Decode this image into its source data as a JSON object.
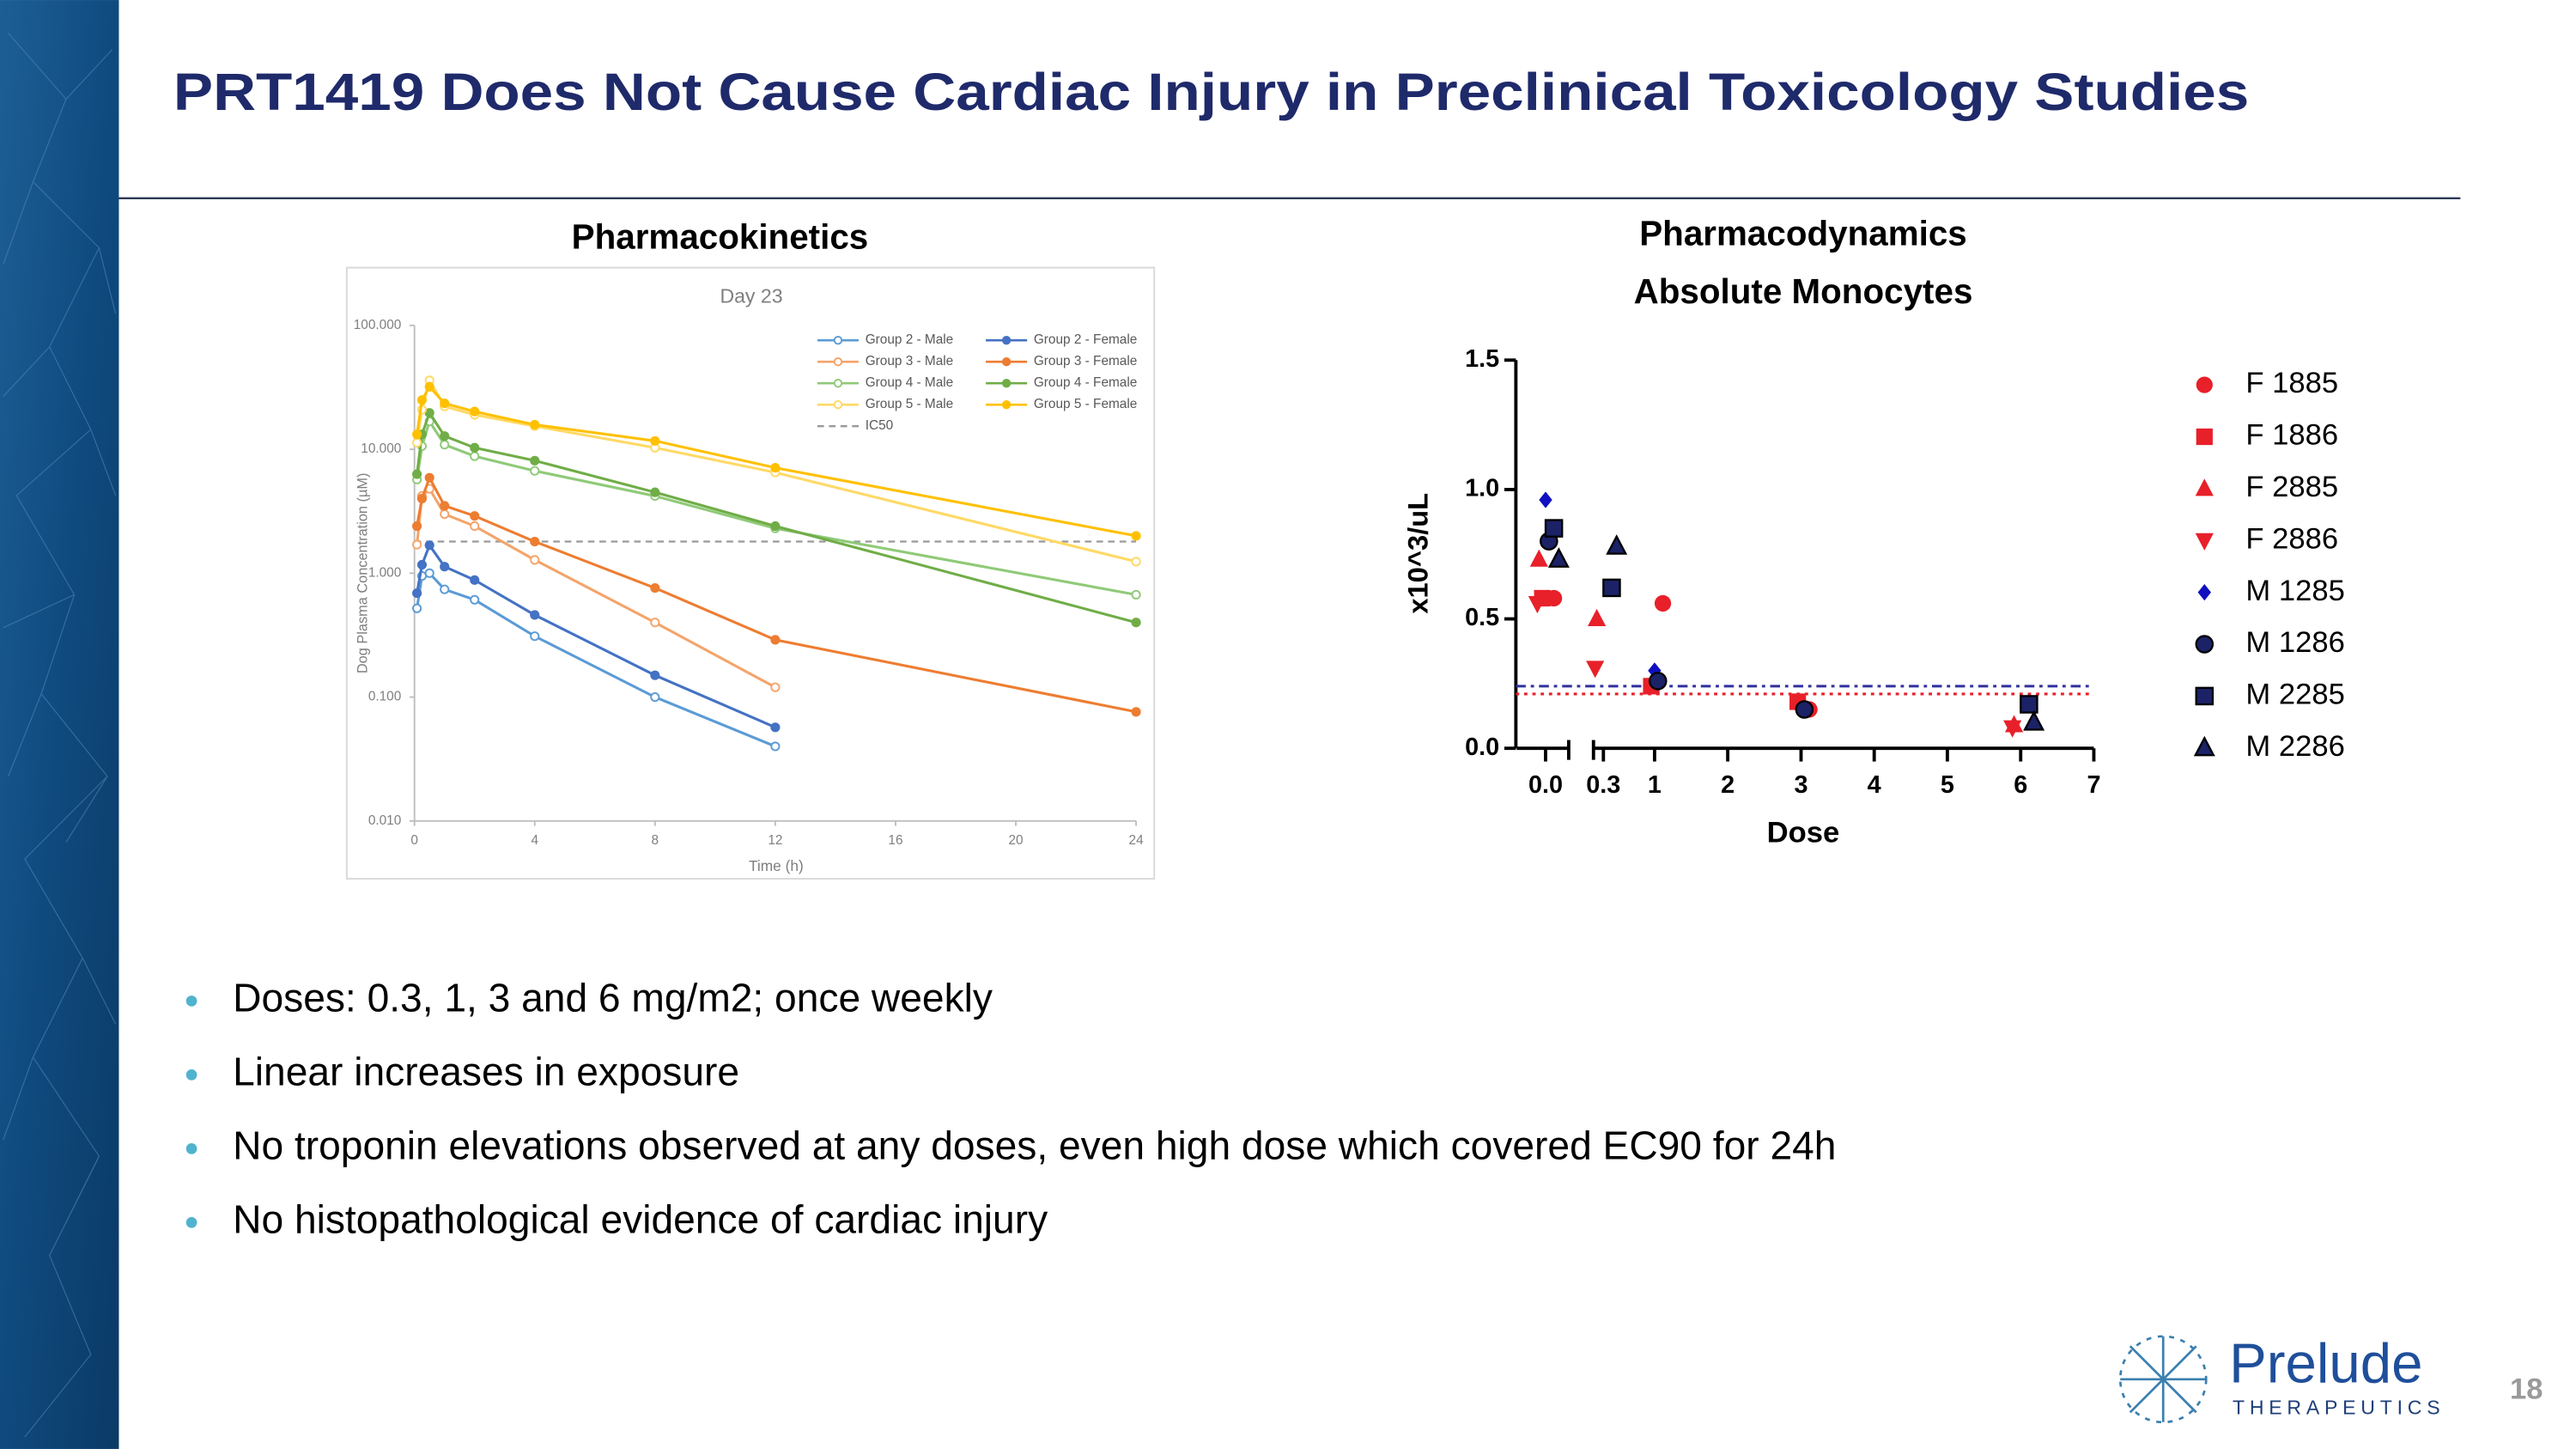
{
  "slide": {
    "title": "PRT1419 Does Not Cause Cardiac Injury in Preclinical Toxicology Studies",
    "bullets": [
      "Doses: 0.3, 1, 3 and 6 mg/m2; once weekly",
      "Linear increases in exposure",
      "No troponin elevations observed at any doses, even high dose which covered EC90 for 24h",
      "No histopathological evidence of cardiac injury"
    ],
    "logo": {
      "name": "Prelude",
      "tagline": "THERAPEUTICS"
    },
    "page_number": 18
  },
  "chart_data": [
    {
      "type": "line",
      "heading": "Pharmacokinetics",
      "title": "Day 23",
      "x_label": "Time (h)",
      "y_label": "Dog Plasma Concentration (µM)",
      "log_y": true,
      "grid": false,
      "x": [
        0.083,
        0.25,
        0.5,
        1,
        2,
        4,
        8,
        12,
        24
      ],
      "xlim": [
        0,
        24
      ],
      "xticks": [
        0,
        4,
        8,
        12,
        16,
        20,
        24
      ],
      "ylim": [
        0.01,
        100
      ],
      "yticks": [
        {
          "value": 100,
          "label": "100.000"
        },
        {
          "value": 10,
          "label": "10.000"
        },
        {
          "value": 1,
          "label": "1.000"
        },
        {
          "value": 0.1,
          "label": "0.100"
        },
        {
          "value": 0.01,
          "label": "0.010"
        }
      ],
      "series": [
        {
          "name": "Group 2 - Male",
          "color": "#5b9bd5",
          "marker": "open",
          "values": [
            0.52,
            0.95,
            1.0,
            0.74,
            0.61,
            0.31,
            0.1,
            0.04,
            null
          ]
        },
        {
          "name": "Group 2 - Female",
          "color": "#4472c4",
          "marker": "filled",
          "values": [
            0.69,
            1.17,
            1.68,
            1.13,
            0.88,
            0.46,
            0.15,
            0.057,
            null
          ]
        },
        {
          "name": "Group 3 - Male",
          "color": "#f4a46a",
          "marker": "open",
          "values": [
            1.7,
            4.2,
            4.8,
            3.0,
            2.4,
            1.28,
            0.4,
            0.12,
            null
          ]
        },
        {
          "name": "Group 3 - Female",
          "color": "#ed7d31",
          "marker": "filled",
          "values": [
            2.4,
            4.0,
            5.9,
            3.5,
            2.9,
            1.8,
            0.76,
            0.29,
            0.076
          ]
        },
        {
          "name": "Group 4 - Male",
          "color": "#8fca78",
          "marker": "open",
          "values": [
            5.7,
            10.6,
            16.8,
            10.9,
            8.8,
            6.7,
            4.2,
            2.3,
            0.67
          ]
        },
        {
          "name": "Group 4 - Female",
          "color": "#70ad47",
          "marker": "filled",
          "values": [
            6.3,
            13.2,
            19.7,
            12.8,
            10.3,
            8.1,
            4.5,
            2.4,
            0.4
          ]
        },
        {
          "name": "Group 5 - Male",
          "color": "#ffd966",
          "marker": "open",
          "values": [
            11.3,
            20.9,
            36,
            22.2,
            19.0,
            15.4,
            10.3,
            6.5,
            1.24
          ]
        },
        {
          "name": "Group 5 - Female",
          "color": "#ffc000",
          "marker": "filled",
          "values": [
            13.2,
            25,
            32,
            23.5,
            20.2,
            15.8,
            11.7,
            7.1,
            2.0
          ]
        }
      ],
      "reference_lines": [
        {
          "name": "IC50",
          "value": 1.8,
          "color": "#999999",
          "style": "dashed"
        }
      ]
    },
    {
      "type": "scatter",
      "heading": "Pharmacodynamics",
      "title": "Absolute Monocytes",
      "x_label": "Dose",
      "y_label": "x10^3/uL",
      "axis_break": true,
      "xlim": [
        -0.15,
        7
      ],
      "xticks": [
        {
          "value": 0,
          "label": "0.0"
        },
        0.3,
        1,
        2,
        3,
        4,
        5,
        6,
        7
      ],
      "ylim": [
        0,
        1.5
      ],
      "yticks": [
        {
          "value": 0,
          "label": "0.0"
        },
        {
          "value": 0.5,
          "label": "0.5"
        },
        {
          "value": 1,
          "label": "1.0"
        },
        {
          "value": 1.5,
          "label": "1.5"
        }
      ],
      "series": [
        {
          "name": "F 1885",
          "color": "#e8202a",
          "marker": "circle",
          "x": [
            0,
            1,
            3
          ],
          "values": [
            0.58,
            0.56,
            0.15
          ]
        },
        {
          "name": "F 1886",
          "color": "#e8202a",
          "marker": "square",
          "x": [
            0,
            1,
            3
          ],
          "values": [
            0.58,
            0.24,
            0.18
          ]
        },
        {
          "name": "F 2885",
          "color": "#e8202a",
          "marker": "triangle-up",
          "x": [
            0,
            0.3,
            6
          ],
          "values": [
            0.73,
            0.5,
            0.09
          ]
        },
        {
          "name": "F 2886",
          "color": "#e8202a",
          "marker": "triangle-down",
          "x": [
            0,
            0.3,
            6
          ],
          "values": [
            0.56,
            0.31,
            0.08
          ]
        },
        {
          "name": "M 1285",
          "color": "#1010c0",
          "marker": "diamond",
          "x": [
            0,
            1
          ],
          "values": [
            0.96,
            0.3
          ]
        },
        {
          "name": "M 1286",
          "color": "#1b2266",
          "marker": "circle",
          "x": [
            0,
            1,
            3
          ],
          "values": [
            0.8,
            0.26,
            0.15
          ]
        },
        {
          "name": "M 2285",
          "color": "#1b2266",
          "marker": "square",
          "x": [
            0,
            0.3,
            6
          ],
          "values": [
            0.85,
            0.62,
            0.17
          ]
        },
        {
          "name": "M 2286",
          "color": "#1b2266",
          "marker": "triangle-up",
          "x": [
            0,
            0.3,
            6
          ],
          "values": [
            0.73,
            0.78,
            0.1
          ]
        }
      ],
      "reference_lines": [
        {
          "value": 0.24,
          "color": "#3030a0",
          "style": "dashdot"
        },
        {
          "value": 0.21,
          "color": "#e8202a",
          "style": "dotted"
        }
      ]
    }
  ]
}
